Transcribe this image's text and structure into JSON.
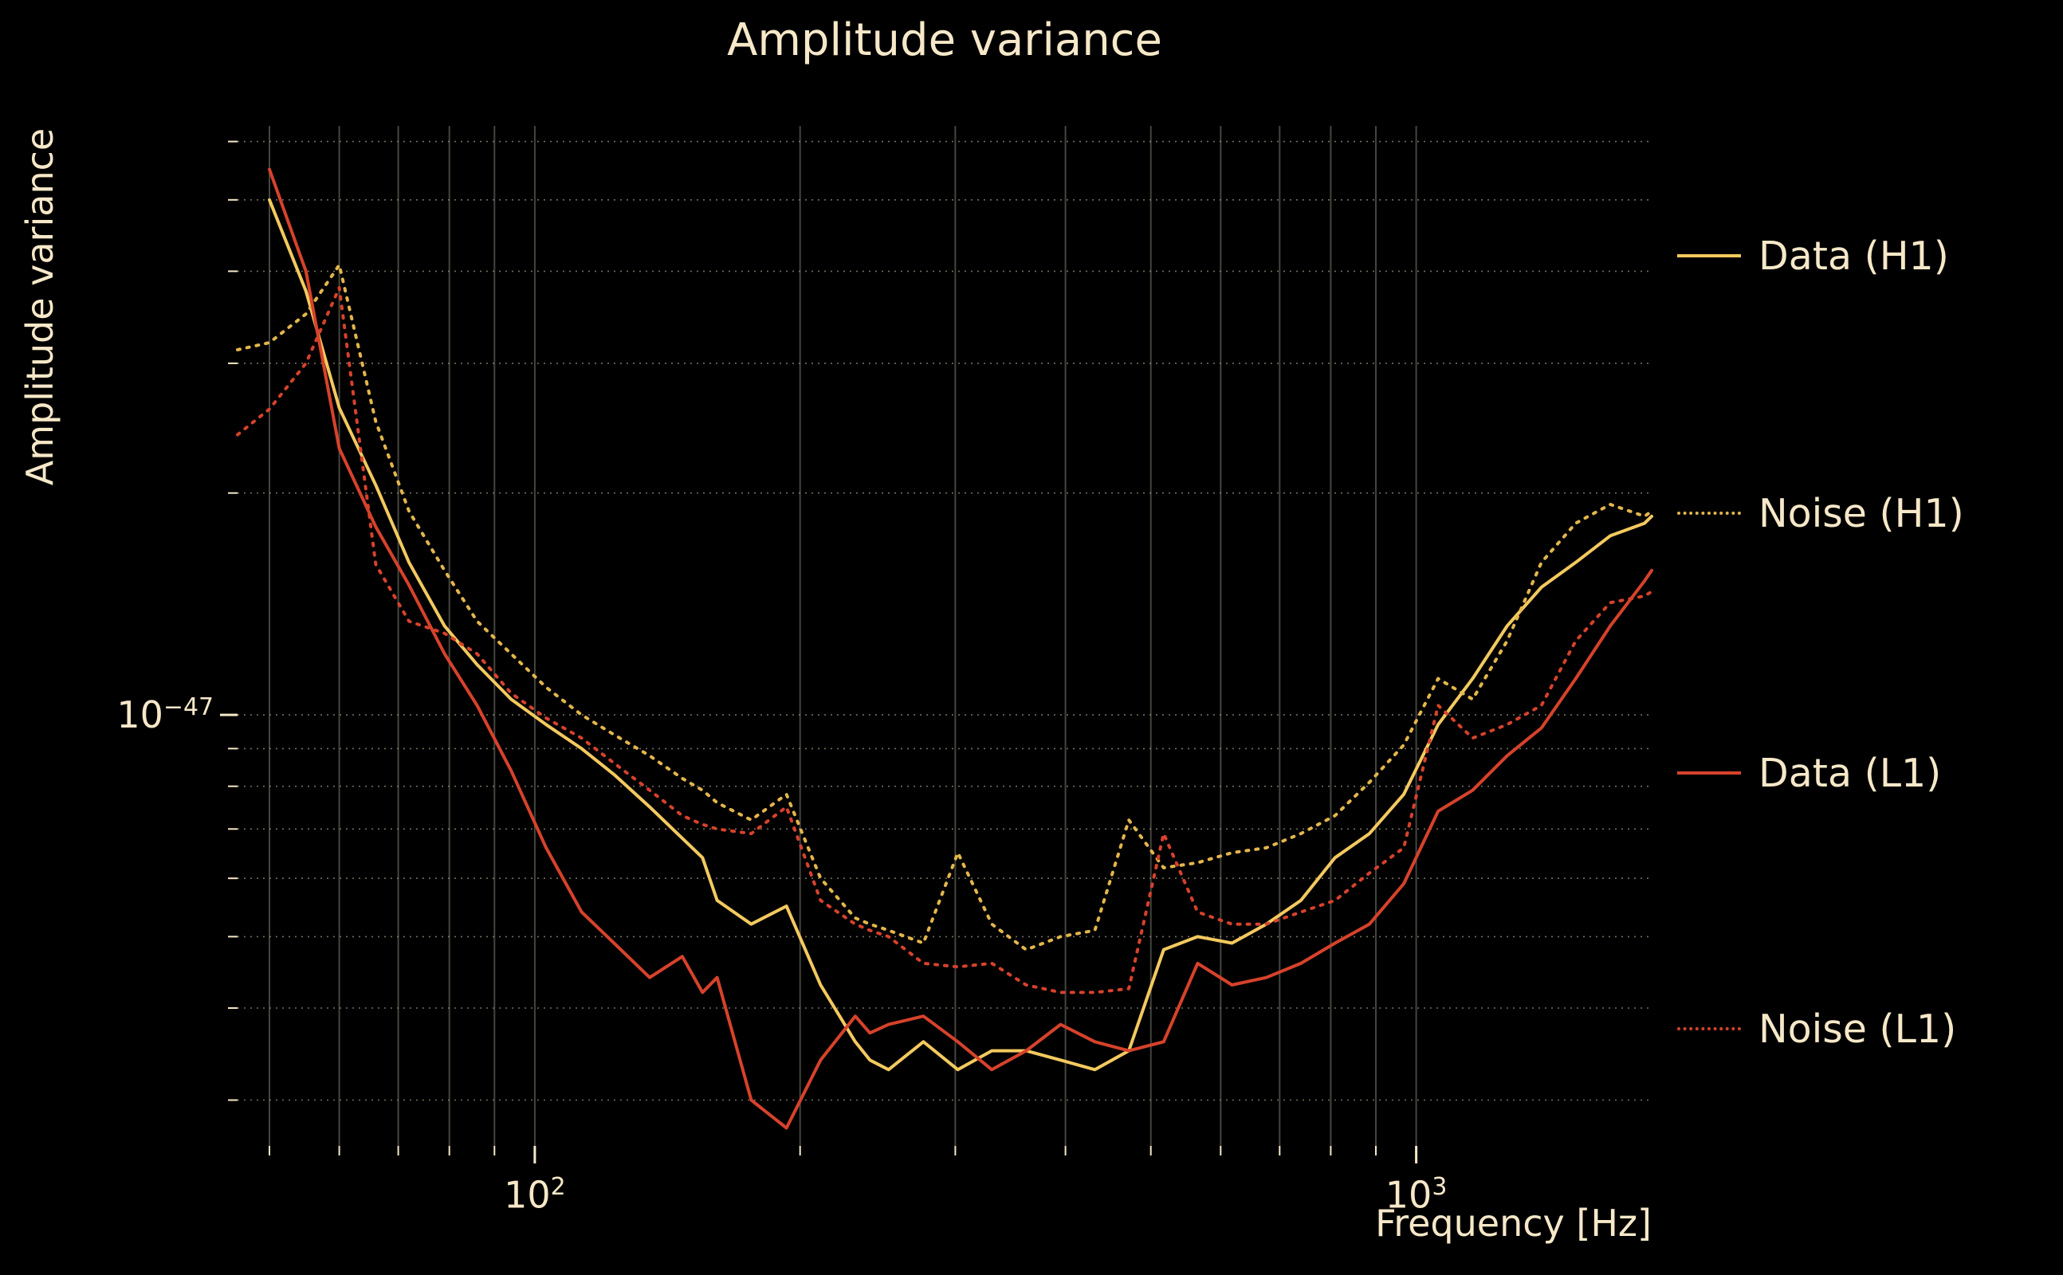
{
  "chart_data": {
    "type": "line",
    "title": "Amplitude variance",
    "xlabel": "Frequency [Hz]",
    "ylabel": "Amplitude variance",
    "x_scale": "log",
    "y_scale": "log",
    "grid": true,
    "legend_position": "right-outside",
    "xlim": [
      46,
      1850
    ],
    "ylim": [
      2.6e-48,
      6.3e-47
    ],
    "colors": {
      "background": "#000000",
      "text": "#f6e8c8",
      "grid_horizontal": "#9a937e",
      "grid_vertical": "#45453f",
      "tick": "#f6e8c8",
      "h1": "#f3c95f",
      "l1": "#d6422b"
    },
    "x_ticks": [
      {
        "base": "10",
        "exp": "2",
        "value": 100
      },
      {
        "base": "10",
        "exp": "3",
        "value": 1000
      }
    ],
    "y_ticks": [
      {
        "base": "10",
        "exp": "−47",
        "value": 1e-47
      }
    ],
    "x_gridlines": [
      50,
      60,
      70,
      80,
      90,
      100,
      200,
      300,
      400,
      500,
      600,
      700,
      800,
      900,
      1000
    ],
    "y_gridlines": [
      3e-48,
      4e-48,
      5e-48,
      6e-48,
      7e-48,
      8e-48,
      9e-48,
      1e-47,
      2e-47,
      3e-47,
      4e-47,
      5e-47,
      6e-47
    ],
    "x": [
      46,
      50,
      55,
      60,
      66,
      72,
      79,
      86,
      94,
      103,
      113,
      123,
      135,
      147,
      155,
      161,
      176,
      193,
      211,
      231,
      240,
      252,
      276,
      302,
      330,
      361,
      395,
      432,
      472,
      517,
      565,
      618,
      676,
      740,
      809,
      885,
      968,
      1059,
      1159,
      1268,
      1387,
      1517,
      1660,
      1816,
      1850
    ],
    "series": [
      {
        "name": "Data (H1)",
        "color": "#f3c95f",
        "style": "solid",
        "values": [
          null,
          5e-47,
          3.76e-47,
          2.61e-47,
          2.05e-47,
          1.61e-47,
          1.32e-47,
          1.17e-47,
          1.05e-47,
          9.7e-48,
          9e-48,
          8.3e-48,
          7.5e-48,
          6.8e-48,
          6.4e-48,
          5.6e-48,
          5.2e-48,
          5.5e-48,
          4.3e-48,
          3.6e-48,
          3.4e-48,
          3.3e-48,
          3.6e-48,
          3.3e-48,
          3.5e-48,
          3.5e-48,
          3.4e-48,
          3.3e-48,
          3.5e-48,
          4.8e-48,
          5e-48,
          4.9e-48,
          5.2e-48,
          5.6e-48,
          6.4e-48,
          6.9e-48,
          7.8e-48,
          9.7e-48,
          1.12e-47,
          1.32e-47,
          1.49e-47,
          1.61e-47,
          1.75e-47,
          1.82e-47,
          1.86e-47
        ]
      },
      {
        "name": "Noise (H1)",
        "color": "#e3b64c",
        "style": "dotted",
        "values": [
          3.13e-47,
          3.2e-47,
          3.5e-47,
          4.08e-47,
          2.5e-47,
          1.89e-47,
          1.57e-47,
          1.34e-47,
          1.21e-47,
          1.09e-47,
          1e-47,
          9.4e-48,
          8.8e-48,
          8.2e-48,
          7.9e-48,
          7.6e-48,
          7.2e-48,
          7.8e-48,
          6e-48,
          5.3e-48,
          5.2e-48,
          5.1e-48,
          4.9e-48,
          6.5e-48,
          5.2e-48,
          4.8e-48,
          5e-48,
          5.1e-48,
          7.2e-48,
          6.2e-48,
          6.3e-48,
          6.5e-48,
          6.6e-48,
          6.9e-48,
          7.3e-48,
          8.1e-48,
          9.1e-48,
          1.12e-47,
          1.05e-47,
          1.26e-47,
          1.61e-47,
          1.82e-47,
          1.93e-47,
          1.86e-47,
          1.89e-47
        ]
      },
      {
        "name": "Data (L1)",
        "color": "#d6422b",
        "style": "solid",
        "values": [
          null,
          5.5e-47,
          4e-47,
          2.3e-47,
          1.8e-47,
          1.5e-47,
          1.21e-47,
          1.03e-47,
          8.4e-48,
          6.6e-48,
          5.4e-48,
          4.9e-48,
          4.4e-48,
          4.7e-48,
          4.2e-48,
          4.4e-48,
          3e-48,
          2.75e-48,
          3.4e-48,
          3.9e-48,
          3.7e-48,
          3.8e-48,
          3.9e-48,
          3.6e-48,
          3.3e-48,
          3.5e-48,
          3.8e-48,
          3.6e-48,
          3.5e-48,
          3.6e-48,
          4.6e-48,
          4.3e-48,
          4.4e-48,
          4.6e-48,
          4.9e-48,
          5.2e-48,
          5.9e-48,
          7.4e-48,
          7.9e-48,
          8.8e-48,
          9.6e-48,
          1.12e-47,
          1.32e-47,
          1.52e-47,
          1.57e-47
        ]
      },
      {
        "name": "Noise (L1)",
        "color": "#d6422b",
        "style": "dotted",
        "values": [
          2.4e-47,
          2.6e-47,
          3e-47,
          3.8e-47,
          1.6e-47,
          1.34e-47,
          1.29e-47,
          1.21e-47,
          1.07e-47,
          9.9e-48,
          9.3e-48,
          8.6e-48,
          7.9e-48,
          7.3e-48,
          7.1e-48,
          7e-48,
          6.9e-48,
          7.5e-48,
          5.6e-48,
          5.2e-48,
          5.1e-48,
          5e-48,
          4.6e-48,
          4.55e-48,
          4.6e-48,
          4.3e-48,
          4.2e-48,
          4.2e-48,
          4.25e-48,
          6.9e-48,
          5.4e-48,
          5.2e-48,
          5.2e-48,
          5.4e-48,
          5.6e-48,
          6.1e-48,
          6.6e-48,
          1.03e-47,
          9.3e-48,
          9.7e-48,
          1.03e-47,
          1.26e-47,
          1.42e-47,
          1.45e-47,
          1.47e-47
        ]
      }
    ]
  }
}
